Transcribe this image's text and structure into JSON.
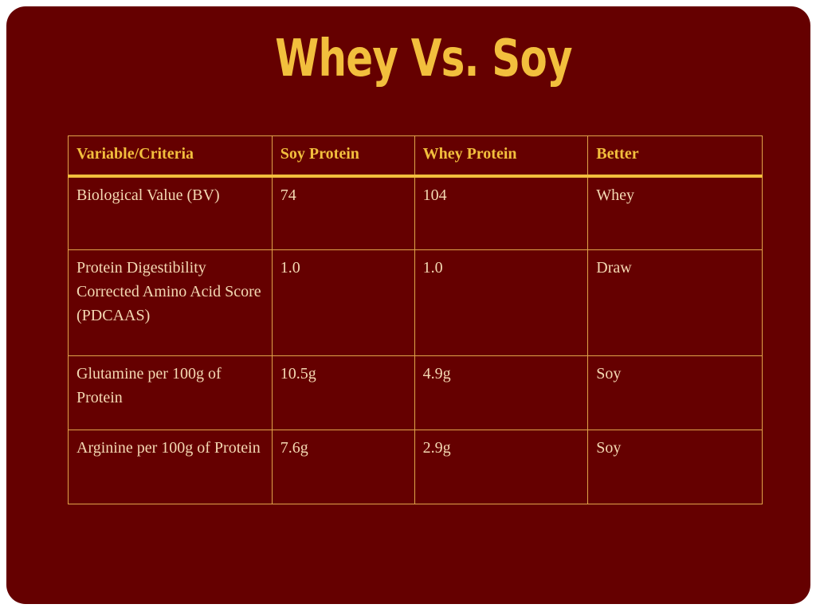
{
  "slide": {
    "title": "Whey Vs. Soy"
  },
  "table": {
    "headers": [
      "Variable/Criteria",
      "Soy Protein",
      "Whey Protein",
      "Better"
    ],
    "rows": [
      [
        "Biological Value (BV)",
        "74",
        "104",
        "Whey"
      ],
      [
        "Protein Digestibility Corrected Amino Acid Score (PDCAAS)",
        "1.0",
        "1.0",
        "Draw"
      ],
      [
        "Glutamine per 100g of Protein",
        "10.5g",
        "4.9g",
        "Soy"
      ],
      [
        "Arginine per 100g of Protein",
        "7.6g",
        "2.9g",
        "Soy"
      ]
    ]
  },
  "colors": {
    "background": "#650000",
    "title": "#f2bf3d",
    "border": "#e0a44a",
    "text": "#f4d9b3"
  }
}
